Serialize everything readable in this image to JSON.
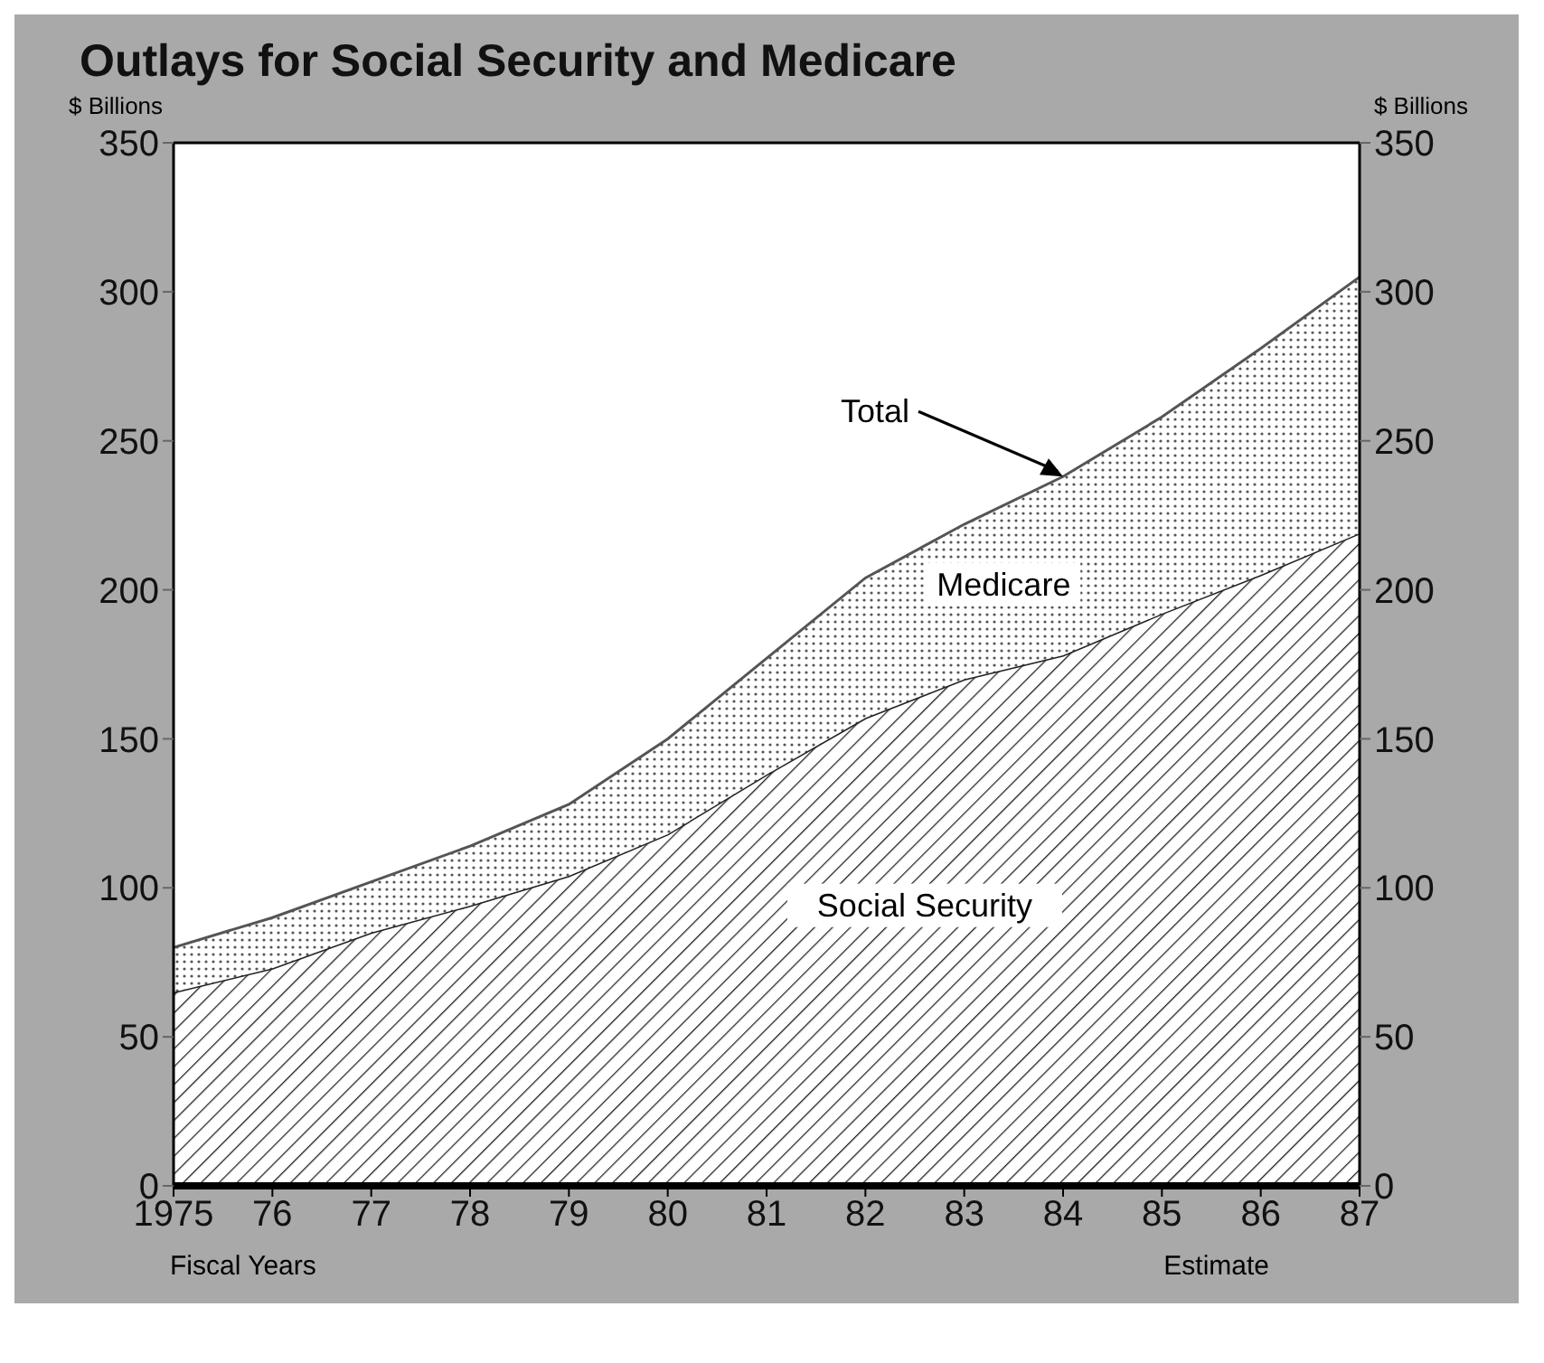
{
  "chart_data": {
    "type": "area",
    "stacked": true,
    "title": "Outlays for Social Security and Medicare",
    "xlabel": "Fiscal Years",
    "ylabel": "$ Billions",
    "y2label": "$ Billions",
    "categories": [
      "1975",
      "76",
      "77",
      "78",
      "79",
      "80",
      "81",
      "82",
      "83",
      "84",
      "85",
      "86",
      "87"
    ],
    "series": [
      {
        "name": "Social Security",
        "color": "#222222",
        "values": [
          65,
          73,
          85,
          94,
          104,
          118,
          138,
          157,
          170,
          178,
          192,
          205,
          219
        ]
      },
      {
        "name": "Medicare",
        "color": "#555555",
        "values": [
          15,
          17,
          17,
          20,
          24,
          32,
          39,
          47,
          52,
          60,
          66,
          76,
          86
        ]
      }
    ],
    "ylim": [
      0,
      350
    ],
    "yticks": [
      0,
      50,
      100,
      150,
      200,
      250,
      300,
      350
    ],
    "y2lim": [
      0,
      350
    ],
    "y2ticks": [
      0,
      50,
      100,
      150,
      200,
      250,
      300,
      350
    ],
    "annotations": [
      {
        "text": "Total",
        "x": "84",
        "y": 238
      },
      "Estimate"
    ]
  }
}
